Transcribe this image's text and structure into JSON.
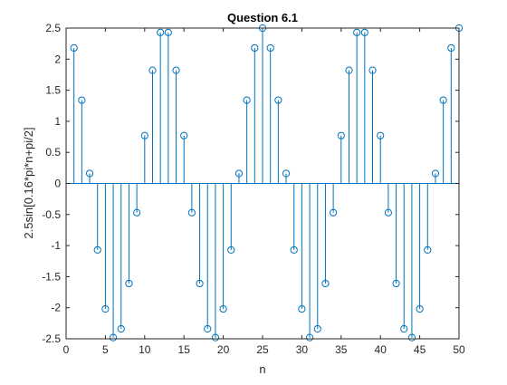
{
  "chart_data": {
    "type": "stem",
    "title": "Question 6.1",
    "xlabel": "n",
    "ylabel": "2.5sin[0.16*pi*n+pi/2]",
    "xlim": [
      0,
      50
    ],
    "ylim": [
      -2.5,
      2.5
    ],
    "xticks": [
      0,
      5,
      10,
      15,
      20,
      25,
      30,
      35,
      40,
      45,
      50
    ],
    "yticks": [
      -2.5,
      -2,
      -1.5,
      -1,
      -0.5,
      0,
      0.5,
      1,
      1.5,
      2,
      2.5
    ],
    "xtick_labels": [
      "0",
      "5",
      "10",
      "15",
      "20",
      "25",
      "30",
      "35",
      "40",
      "45",
      "50"
    ],
    "ytick_labels": [
      "-2.5",
      "-2",
      "-1.5",
      "-1",
      "-0.5",
      "0",
      "0.5",
      "1",
      "1.5",
      "2",
      "2.5"
    ],
    "grid": false,
    "marker": "circle-open",
    "color": "#0072BD",
    "x": [
      1,
      2,
      3,
      4,
      5,
      6,
      7,
      8,
      9,
      10,
      11,
      12,
      13,
      14,
      15,
      16,
      17,
      18,
      19,
      20,
      21,
      22,
      23,
      24,
      25,
      26,
      27,
      28,
      29,
      30,
      31,
      32,
      33,
      34,
      35,
      36,
      37,
      38,
      39,
      40,
      41,
      42,
      43,
      44,
      45,
      46,
      47,
      48,
      49,
      50
    ],
    "y": [
      2.18,
      1.34,
      0.16,
      -1.07,
      -2.02,
      -2.48,
      -2.34,
      -1.61,
      -0.47,
      0.77,
      1.82,
      2.43,
      2.43,
      1.82,
      0.77,
      -0.47,
      -1.61,
      -2.34,
      -2.48,
      -2.02,
      -1.07,
      0.16,
      1.34,
      2.18,
      2.5,
      2.18,
      1.34,
      0.16,
      -1.07,
      -2.02,
      -2.48,
      -2.34,
      -1.61,
      -0.47,
      0.77,
      1.82,
      2.43,
      2.43,
      1.82,
      0.77,
      -0.47,
      -1.61,
      -2.34,
      -2.48,
      -2.02,
      -1.07,
      0.16,
      1.34,
      2.18,
      2.5
    ]
  }
}
